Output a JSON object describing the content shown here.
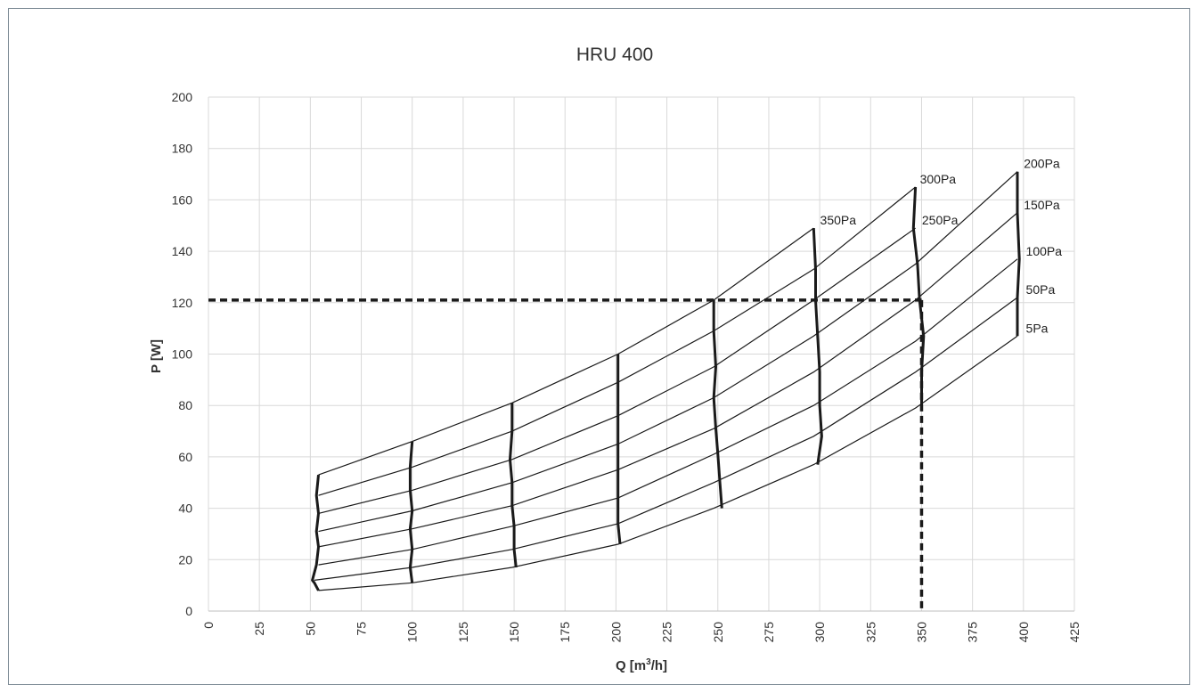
{
  "chart_data": {
    "type": "line",
    "title": "HRU 400",
    "xlabel_main": "Q  [m",
    "xlabel_sup": "3",
    "xlabel_end": "/h]",
    "ylabel": "P  [W]",
    "xlim": [
      0,
      425
    ],
    "ylim": [
      0,
      200
    ],
    "xticks": [
      "0",
      "25",
      "50",
      "75",
      "100",
      "125",
      "150",
      "175",
      "200",
      "225",
      "250",
      "275",
      "300",
      "325",
      "350",
      "375",
      "400",
      "425"
    ],
    "yticks": [
      "0",
      "20",
      "40",
      "60",
      "80",
      "100",
      "120",
      "140",
      "160",
      "180",
      "200"
    ],
    "grid": true,
    "pressure_curves": [
      {
        "name": "350Pa",
        "points": [
          [
            54,
            53
          ],
          [
            100,
            66
          ],
          [
            149,
            81
          ],
          [
            201,
            100
          ],
          [
            248,
            121
          ],
          [
            297,
            149
          ]
        ]
      },
      {
        "name": "300Pa",
        "points": [
          [
            54,
            45
          ],
          [
            100,
            56
          ],
          [
            149,
            70
          ],
          [
            201,
            89
          ],
          [
            248,
            109
          ],
          [
            297,
            133
          ],
          [
            347,
            165
          ]
        ]
      },
      {
        "name": "250Pa",
        "points": [
          [
            54,
            38
          ],
          [
            100,
            47
          ],
          [
            149,
            59
          ],
          [
            201,
            76
          ],
          [
            248,
            95
          ],
          [
            297,
            121
          ],
          [
            347,
            149
          ]
        ]
      },
      {
        "name": "200Pa",
        "points": [
          [
            54,
            31
          ],
          [
            100,
            39
          ],
          [
            149,
            50
          ],
          [
            201,
            65
          ],
          [
            248,
            83
          ],
          [
            297,
            107
          ],
          [
            347,
            135
          ],
          [
            397,
            171
          ]
        ]
      },
      {
        "name": "150Pa",
        "points": [
          [
            54,
            25
          ],
          [
            100,
            32
          ],
          [
            149,
            41
          ],
          [
            201,
            55
          ],
          [
            248,
            71
          ],
          [
            297,
            93
          ],
          [
            347,
            121
          ],
          [
            397,
            155
          ]
        ]
      },
      {
        "name": "100Pa",
        "points": [
          [
            54,
            18
          ],
          [
            100,
            24
          ],
          [
            149,
            33
          ],
          [
            201,
            44
          ],
          [
            248,
            61
          ],
          [
            297,
            80
          ],
          [
            347,
            105
          ],
          [
            397,
            137
          ]
        ]
      },
      {
        "name": "50Pa",
        "points": [
          [
            52,
            12
          ],
          [
            100,
            17
          ],
          [
            149,
            24
          ],
          [
            201,
            34
          ],
          [
            248,
            50
          ],
          [
            297,
            68
          ],
          [
            347,
            93
          ],
          [
            397,
            122
          ]
        ]
      },
      {
        "name": "5Pa",
        "points": [
          [
            54,
            8
          ],
          [
            100,
            11
          ],
          [
            149,
            17
          ],
          [
            201,
            26
          ],
          [
            248,
            40
          ],
          [
            297,
            57
          ],
          [
            347,
            79
          ],
          [
            397,
            107
          ]
        ]
      }
    ],
    "speed_lines": [
      {
        "points": [
          [
            54,
            53
          ],
          [
            53,
            45
          ],
          [
            54,
            38
          ],
          [
            53,
            31
          ],
          [
            54,
            25
          ],
          [
            53,
            18
          ],
          [
            51,
            12
          ],
          [
            52,
            11
          ],
          [
            54,
            8
          ]
        ]
      },
      {
        "points": [
          [
            100,
            66
          ],
          [
            99,
            56
          ],
          [
            99,
            47
          ],
          [
            100,
            39
          ],
          [
            99,
            32
          ],
          [
            100,
            24
          ],
          [
            99,
            17
          ],
          [
            100,
            11
          ]
        ]
      },
      {
        "points": [
          [
            149,
            81
          ],
          [
            149,
            70
          ],
          [
            148,
            59
          ],
          [
            149,
            50
          ],
          [
            149,
            41
          ],
          [
            150,
            33
          ],
          [
            150,
            24
          ],
          [
            151,
            17
          ]
        ]
      },
      {
        "points": [
          [
            201,
            100
          ],
          [
            201,
            89
          ],
          [
            201,
            76
          ],
          [
            201,
            65
          ],
          [
            201,
            55
          ],
          [
            201,
            44
          ],
          [
            201,
            34
          ],
          [
            202,
            26
          ]
        ]
      },
      {
        "points": [
          [
            248,
            121
          ],
          [
            248,
            109
          ],
          [
            249,
            95
          ],
          [
            248,
            83
          ],
          [
            249,
            71
          ],
          [
            250,
            61
          ],
          [
            251,
            50
          ],
          [
            252,
            40
          ]
        ]
      },
      {
        "points": [
          [
            297,
            149
          ],
          [
            298,
            133
          ],
          [
            298,
            121
          ],
          [
            299,
            107
          ],
          [
            300,
            93
          ],
          [
            300,
            80
          ],
          [
            301,
            68
          ],
          [
            299,
            57
          ]
        ]
      },
      {
        "points": [
          [
            347,
            165
          ],
          [
            346,
            149
          ],
          [
            348,
            135
          ],
          [
            349,
            121
          ],
          [
            351,
            107
          ],
          [
            350,
            93
          ],
          [
            350,
            79
          ]
        ]
      },
      {
        "points": [
          [
            397,
            171
          ],
          [
            397,
            155
          ],
          [
            398,
            137
          ],
          [
            397,
            122
          ],
          [
            397,
            107
          ]
        ]
      }
    ],
    "curve_label_positions": [
      {
        "name": "350Pa",
        "x": 298,
        "y": 149
      },
      {
        "name": "300Pa",
        "x": 347,
        "y": 165
      },
      {
        "name": "250Pa",
        "x": 348,
        "y": 149
      },
      {
        "name": "200Pa",
        "x": 398,
        "y": 171
      },
      {
        "name": "150Pa",
        "x": 398,
        "y": 155
      },
      {
        "name": "100Pa",
        "x": 399,
        "y": 137
      },
      {
        "name": "50Pa",
        "x": 399,
        "y": 122
      },
      {
        "name": "5Pa",
        "x": 399,
        "y": 107
      }
    ],
    "operating_point": {
      "x": 350,
      "y": 121
    },
    "colors": {
      "curves": "#1a1a1a",
      "grid": "#d9d9d9",
      "axis": "#bfbfbf",
      "text": "#333333",
      "frame": "#7f8c97"
    }
  }
}
